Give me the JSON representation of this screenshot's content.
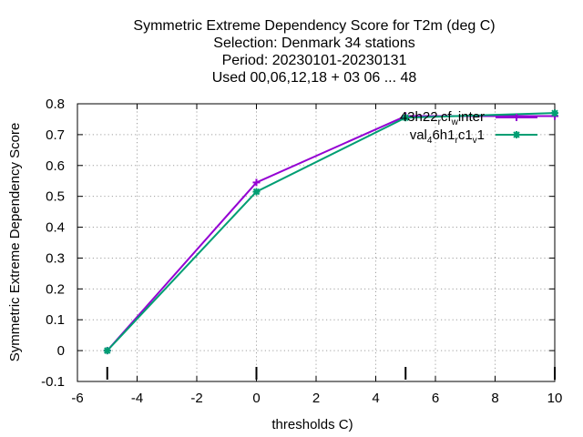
{
  "chart_data": {
    "type": "line",
    "title_lines": [
      "Symmetric Extreme Dependency Score  for T2m (deg C)",
      "Selection: Denmark     34 stations",
      "Period: 20230101-20230131",
      "Used  00,06,12,18  + 03 06 ... 48"
    ],
    "xlabel": "thresholds C)",
    "ylabel": "Symmetric Extreme Dependency Score",
    "xlim": [
      -6,
      10
    ],
    "ylim": [
      -0.1,
      0.8
    ],
    "xticks": [
      -6,
      -4,
      -2,
      0,
      2,
      4,
      6,
      8,
      10
    ],
    "yticks": [
      -0.1,
      0,
      0.1,
      0.2,
      0.3,
      0.4,
      0.5,
      0.6,
      0.7,
      0.8
    ],
    "xtick_labels": [
      "-6",
      "-4",
      "-2",
      "0",
      "2",
      "4",
      "6",
      "8",
      "10"
    ],
    "ytick_labels": [
      "-0.1",
      "0",
      "0.1",
      "0.2",
      "0.3",
      "0.4",
      "0.5",
      "0.6",
      "0.7",
      "0.8"
    ],
    "grid": true,
    "legend_position": "top-right",
    "threshold_markers": [
      -5,
      0,
      5,
      10
    ],
    "series": [
      {
        "legend_parts": {
          "a": "43h22",
          "b": "r",
          "c": "cf",
          "d": "w",
          "e": "inter"
        },
        "color": "#9400d3",
        "marker": "plus",
        "x": [
          -5,
          0,
          5,
          10
        ],
        "y": [
          0.0,
          0.545,
          0.76,
          0.76
        ]
      },
      {
        "legend_parts": {
          "a": "val",
          "b": "4",
          "c": "6h1",
          "d": "r",
          "e": "c1",
          "f": "v",
          "g": "1"
        },
        "color": "#009e73",
        "marker": "star",
        "x": [
          -5,
          0,
          5,
          10
        ],
        "y": [
          0.0,
          0.515,
          0.755,
          0.77
        ]
      }
    ]
  }
}
